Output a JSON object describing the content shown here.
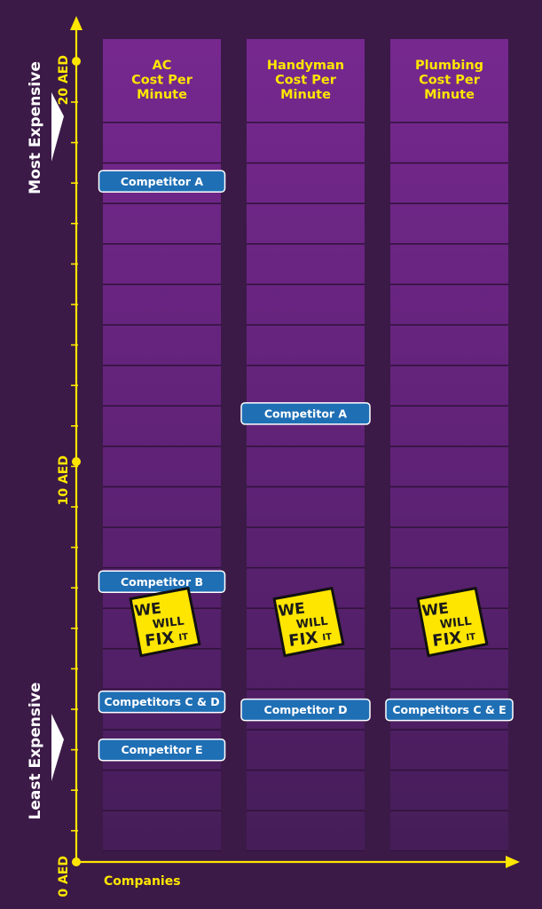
{
  "chart_data": {
    "type": "table",
    "title": "",
    "xlabel": "Companies",
    "ylabel_top": "Most Expensive",
    "ylabel_bottom": "Least Expensive",
    "ylim": [
      0,
      20
    ],
    "y_ticks": [
      {
        "value": 0,
        "label": "0 AED"
      },
      {
        "value": 10,
        "label": "10 AED"
      },
      {
        "value": 20,
        "label": "20 AED"
      }
    ],
    "columns": [
      {
        "title": [
          "AC",
          "Cost Per",
          "Minute"
        ],
        "entries": [
          {
            "label": "Competitor A",
            "value": 17
          },
          {
            "label": "Competitor B",
            "value": 7
          },
          {
            "label": "Competitors C & D",
            "value": 4
          },
          {
            "label": "Competitor E",
            "value": 2.8
          }
        ],
        "logo_value": 6
      },
      {
        "title": [
          "Handyman",
          "Cost Per",
          "Minute"
        ],
        "entries": [
          {
            "label": "Competitor A",
            "value": 11.2
          },
          {
            "label": "Competitor D",
            "value": 3.8
          }
        ],
        "logo_value": 6
      },
      {
        "title": [
          "Plumbing",
          "Cost Per",
          "Minute"
        ],
        "entries": [
          {
            "label": "Competitors C & E",
            "value": 3.8
          }
        ],
        "logo_value": 6
      }
    ],
    "logo_text": [
      "WE",
      "WILL",
      "FIX",
      "IT"
    ],
    "colors": {
      "background": "#3b1a47",
      "axis": "#ffe600",
      "column": "#6a2683",
      "badge": "#1f6fb5",
      "logo": "#ffe600"
    }
  }
}
